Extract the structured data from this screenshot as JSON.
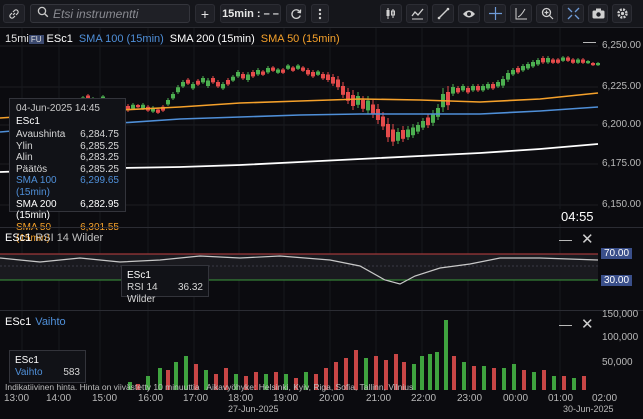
{
  "toolbar": {
    "search_placeholder": "Etsi instrumentti",
    "add_label": "+",
    "interval_label": "15min : – –",
    "icons": [
      "link-icon",
      "search-icon",
      "add-icon",
      "refresh-icon",
      "more-vertical-icon",
      "candlestick-chart-icon",
      "indicators-icon",
      "draw-line-icon",
      "eye-icon",
      "crosshair-icon",
      "axis-scale-icon",
      "zoom-icon",
      "fullscreen-icon",
      "camera-icon",
      "settings-icon"
    ]
  },
  "main_panel": {
    "interval": "15mi",
    "badge": "FU",
    "symbol": "ESc1",
    "sma100": {
      "label": "SMA 100 (15min)",
      "color": "#4f8fd8"
    },
    "sma200": {
      "label": "SMA 200 (15min)",
      "color": "#ffffff"
    },
    "sma50": {
      "label": "SMA 50 (15min)",
      "color": "#f5a12b"
    },
    "countdown": "04:55",
    "price_ticks": [
      "6,250.00",
      "6,225.00",
      "6,200.00",
      "6,175.00",
      "6,150.00"
    ],
    "tooltip": {
      "date": "04-Jun-2025 14:45",
      "symbol": "ESc1",
      "rows": [
        {
          "label": "Avaushinta",
          "value": "6,284.75"
        },
        {
          "label": "Ylin",
          "value": "6,285.25"
        },
        {
          "label": "Alin",
          "value": "6,283.25"
        },
        {
          "label": "Päätös",
          "value": "6,285.25"
        }
      ],
      "sma_rows": [
        {
          "label": "SMA 100 (15min)",
          "value": "6,299.65",
          "color": "#4f8fd8"
        },
        {
          "label": "SMA 200 (15min)",
          "value": "6,282.95",
          "color": "#ffffff"
        },
        {
          "label": "SMA 50 (15min)",
          "value": "6,301.55",
          "color": "#f5a12b"
        }
      ]
    }
  },
  "rsi_panel": {
    "symbol": "ESc1",
    "label": "RSI 14 Wilder",
    "upper": "70.00",
    "lower": "30.00",
    "tooltip": {
      "symbol": "ESc1",
      "label": "RSI 14 Wilder",
      "value": "36.32"
    }
  },
  "volume_panel": {
    "symbol": "ESc1",
    "label": "Vaihto",
    "ticks": [
      "150,000",
      "100,000",
      "50,000"
    ],
    "tooltip": {
      "symbol": "ESc1",
      "label": "Vaihto",
      "value": "583"
    },
    "disclaimer": "Indikatiivinen hinta. Hinta on viivästetty 10 minuuttia   Aikavyöhyke: Helsinki, Kyiv, Riga, Sofia, Tallinn, Vilnius"
  },
  "time_axis": {
    "times": [
      "13:00",
      "14:00",
      "15:00",
      "16:00",
      "17:00",
      "18:00",
      "19:00",
      "20:00",
      "21:00",
      "22:00",
      "23:00",
      "00:00",
      "01:00",
      "02:00"
    ],
    "dates": [
      "27-Jun-2025",
      "30-Jun-2025"
    ]
  }
}
